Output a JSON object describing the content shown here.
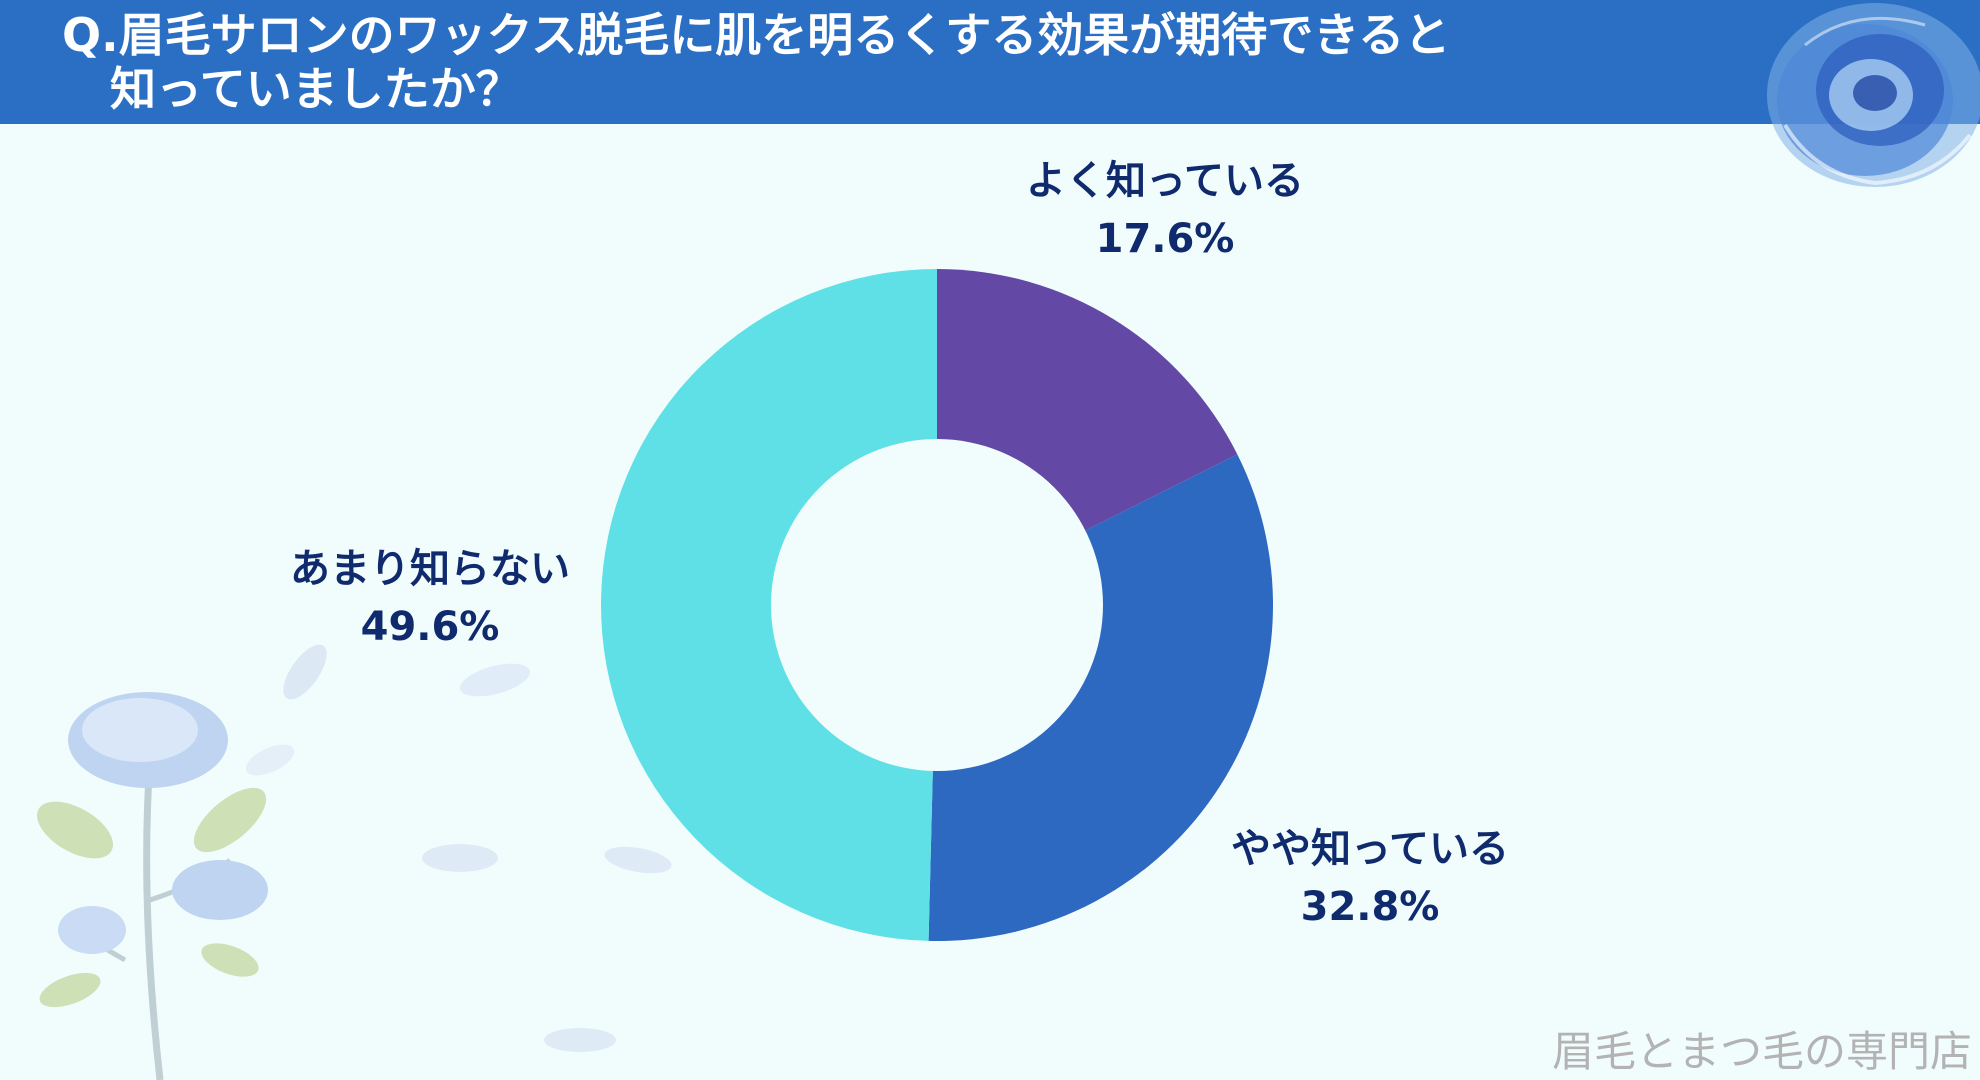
{
  "header": {
    "question_line1": "Q.眉毛サロンのワックス脱毛に肌を明るくする効果が期待できると",
    "question_line2": "知っていましたか？"
  },
  "chart_data": {
    "type": "pie",
    "donut": true,
    "title": "",
    "slices": [
      {
        "label": "よく知っている",
        "value": 17.6,
        "value_label": "17.6%",
        "color": "#6448a5"
      },
      {
        "label": "やや知っている",
        "value": 32.8,
        "value_label": "32.8%",
        "color": "#2d69c0"
      },
      {
        "label": "あまり知らない",
        "value": 49.6,
        "value_label": "49.6%",
        "color": "#5fe0e6"
      }
    ]
  },
  "footer": {
    "brand_text": "眉毛とまつ毛の専門店"
  },
  "decorations": {
    "top_right": "blue-rose-icon",
    "bottom_left": "rose-branch-icon",
    "petals": "rose-petal-icon"
  }
}
